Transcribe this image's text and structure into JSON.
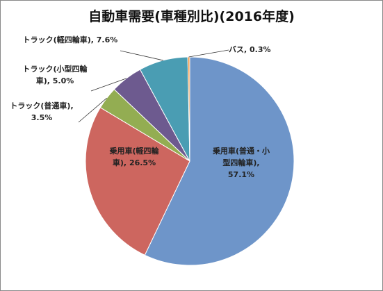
{
  "chart_data": {
    "type": "pie",
    "title": "自動車需要(車種別比)(2016年度)",
    "categories": [
      "乗用車(普通・小型四輪車)",
      "乗用車(軽四輪車)",
      "トラック(普通車)",
      "トラック(小型四輪車)",
      "トラック(軽四輪車)",
      "バス"
    ],
    "values": [
      57.1,
      26.5,
      3.5,
      5.0,
      7.6,
      0.3
    ],
    "value_labels": [
      "57.1%",
      "26.5%",
      "3.5%",
      "5.0%",
      "7.6%",
      "0.3%"
    ],
    "label_separator": ",",
    "colors": [
      "#6e95c9",
      "#cd665f",
      "#93ad52",
      "#6d5a8f",
      "#4a9db3",
      "#f0953f"
    ]
  }
}
